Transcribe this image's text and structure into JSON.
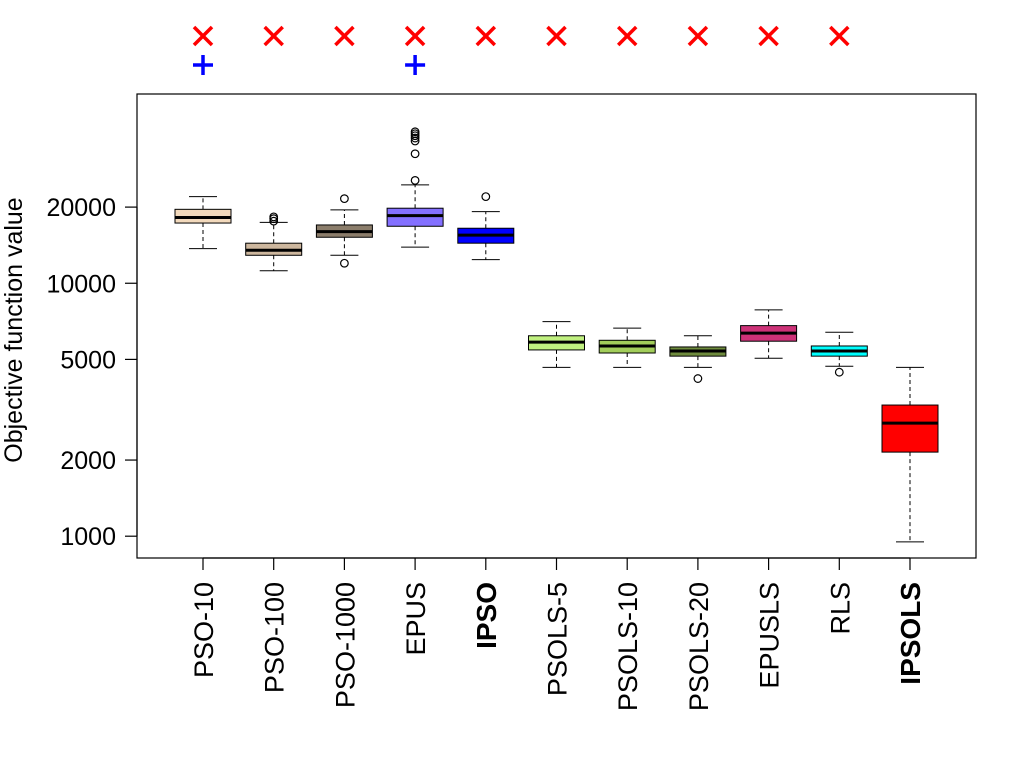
{
  "chart_data": {
    "type": "boxplot",
    "ylabel": "Objective function value",
    "yscale": "log",
    "ylim": [
      820,
      56000
    ],
    "yticks": [
      {
        "value": 1000,
        "label": "1000"
      },
      {
        "value": 2000,
        "label": "2000"
      },
      {
        "value": 5000,
        "label": "5000"
      },
      {
        "value": 10000,
        "label": "10000"
      },
      {
        "value": 20000,
        "label": "20000"
      }
    ],
    "categories": [
      {
        "label": "PSO-10",
        "bold": false,
        "color": "#F2D9BC",
        "whisker_low": 13700,
        "q1": 17300,
        "median": 18200,
        "q3": 19600,
        "whisker_high": 22000,
        "outliers": [],
        "marks": [
          "x",
          "+"
        ]
      },
      {
        "label": "PSO-100",
        "bold": false,
        "color": "#CDB79E",
        "whisker_low": 11200,
        "q1": 12900,
        "median": 13500,
        "q3": 14400,
        "whisker_high": 17400,
        "outliers": [
          17600,
          18000,
          18300
        ],
        "marks": [
          "x"
        ]
      },
      {
        "label": "PSO-1000",
        "bold": false,
        "color": "#8B7D6B",
        "whisker_low": 12900,
        "q1": 15200,
        "median": 16000,
        "q3": 17000,
        "whisker_high": 19500,
        "outliers": [
          12000,
          21600
        ],
        "marks": [
          "x"
        ]
      },
      {
        "label": "EPUS",
        "bold": false,
        "color": "#8470FF",
        "whisker_low": 13900,
        "q1": 16800,
        "median": 18500,
        "q3": 19800,
        "whisker_high": 24500,
        "outliers": [
          25500,
          32500,
          36500,
          37500,
          38300,
          39000,
          39700
        ],
        "marks": [
          "x",
          "+"
        ]
      },
      {
        "label": "IPSO",
        "bold": true,
        "color": "#0000FF",
        "whisker_low": 12400,
        "q1": 14400,
        "median": 15500,
        "q3": 16500,
        "whisker_high": 19200,
        "outliers": [
          22000
        ],
        "marks": [
          "x"
        ]
      },
      {
        "label": "PSOLS-5",
        "bold": false,
        "color": "#C0F080",
        "whisker_low": 4650,
        "q1": 5450,
        "median": 5850,
        "q3": 6200,
        "whisker_high": 7050,
        "outliers": [],
        "marks": [
          "x"
        ]
      },
      {
        "label": "PSOLS-10",
        "bold": false,
        "color": "#A2CD5A",
        "whisker_low": 4650,
        "q1": 5300,
        "median": 5650,
        "q3": 5950,
        "whisker_high": 6650,
        "outliers": [],
        "marks": [
          "x"
        ]
      },
      {
        "label": "PSOLS-20",
        "bold": false,
        "color": "#6E8B3D",
        "whisker_low": 4650,
        "q1": 5150,
        "median": 5400,
        "q3": 5600,
        "whisker_high": 6200,
        "outliers": [
          4200
        ],
        "marks": [
          "x"
        ]
      },
      {
        "label": "EPUSLS",
        "bold": false,
        "color": "#CD3278",
        "whisker_low": 5050,
        "q1": 5900,
        "median": 6350,
        "q3": 6800,
        "whisker_high": 7850,
        "outliers": [],
        "marks": [
          "x"
        ]
      },
      {
        "label": "RLS",
        "bold": false,
        "color": "#00FFFF",
        "whisker_low": 4700,
        "q1": 5150,
        "median": 5400,
        "q3": 5650,
        "whisker_high": 6400,
        "outliers": [
          4450
        ],
        "marks": [
          "x"
        ]
      },
      {
        "label": "IPSOLS",
        "bold": true,
        "color": "#FF0000",
        "whisker_low": 950,
        "q1": 2150,
        "median": 2800,
        "q3": 3300,
        "whisker_high": 4650,
        "outliers": [],
        "marks": []
      }
    ],
    "mark_colors": {
      "x": "#FF0000",
      "+": "#0000FF"
    },
    "grid": false,
    "legend": "none"
  }
}
